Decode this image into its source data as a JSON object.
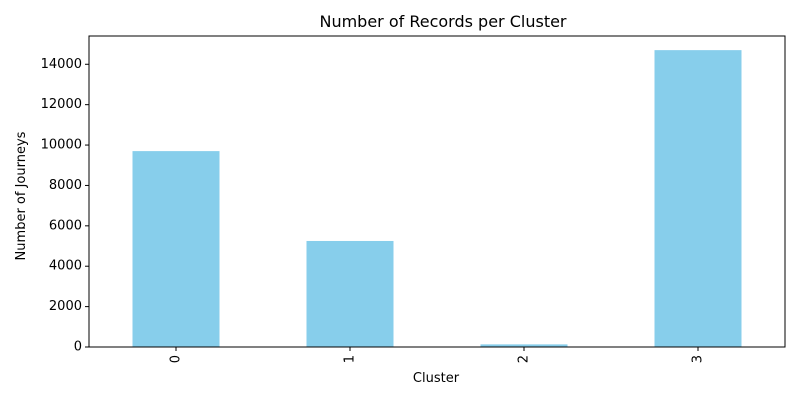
{
  "chart_data": {
    "type": "bar",
    "title": "Number of Records per Cluster",
    "xlabel": "Cluster",
    "ylabel": "Number of Journeys",
    "categories": [
      "0",
      "1",
      "2",
      "3"
    ],
    "values": [
      9700,
      5250,
      130,
      14700
    ],
    "ylim": [
      0,
      15400
    ],
    "yticks": [
      0,
      2000,
      4000,
      6000,
      8000,
      10000,
      12000,
      14000
    ],
    "bar_color": "#87ceeb",
    "grid": false,
    "legend": "none"
  }
}
